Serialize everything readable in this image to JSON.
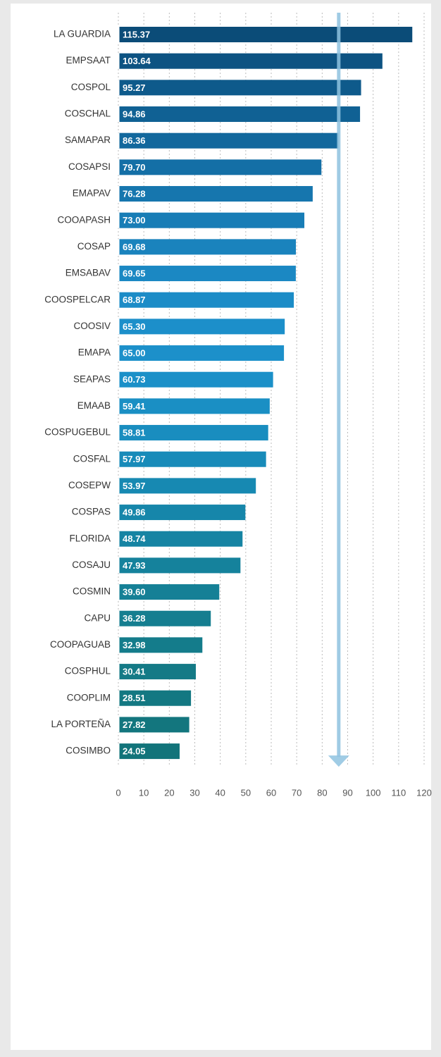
{
  "chart_data": {
    "type": "hbar",
    "categories": [
      "LA GUARDIA",
      "EMPSAAT",
      "COSPOL",
      "COSCHAL",
      "SAMAPAR",
      "COSAPSI",
      "EMAPAV",
      "COOAPASH",
      "COSAP",
      "EMSABAV",
      "COOSPELCAR",
      "COOSIV",
      "EMAPA",
      "SEAPAS",
      "EMAAB",
      "COSPUGEBUL",
      "COSFAL",
      "COSEPW",
      "COSPAS",
      "FLORIDA",
      "COSAJU",
      "COSMIN",
      "CAPU",
      "COOPAGUAB",
      "COSPHUL",
      "COOPLIM",
      "LA PORTEÑA",
      "COSIMBO"
    ],
    "values": [
      115.37,
      103.64,
      95.27,
      94.86,
      86.36,
      79.7,
      76.28,
      73.0,
      69.68,
      69.65,
      68.87,
      65.3,
      65.0,
      60.73,
      59.41,
      58.81,
      57.97,
      53.97,
      49.86,
      48.74,
      47.93,
      39.6,
      36.28,
      32.98,
      30.41,
      28.51,
      27.82,
      24.05
    ],
    "value_labels": [
      "115.37",
      "103.64",
      "95.27",
      "94.86",
      "86.36",
      "79.70",
      "76.28",
      "73.00",
      "69.68",
      "69.65",
      "68.87",
      "65.30",
      "65.00",
      "60.73",
      "59.41",
      "58.81",
      "57.97",
      "53.97",
      "49.86",
      "48.74",
      "47.93",
      "39.60",
      "36.28",
      "32.98",
      "30.41",
      "28.51",
      "27.82",
      "24.05"
    ],
    "colors": [
      "#0b4c78",
      "#0d5382",
      "#0e5a8b",
      "#106194",
      "#12689d",
      "#146fa6",
      "#1676ae",
      "#187db6",
      "#1a83bd",
      "#1b88c3",
      "#1c8cc7",
      "#1c8fca",
      "#1c90ca",
      "#1b90c8",
      "#1a8fc4",
      "#198dbf",
      "#188bb9",
      "#1789b2",
      "#1686aa",
      "#1684a3",
      "#15829c",
      "#158096",
      "#157e90",
      "#147c8b",
      "#147a86",
      "#137882",
      "#13767e",
      "#12747a"
    ],
    "xlim": [
      0,
      120
    ],
    "xticks": [
      0,
      10,
      20,
      30,
      40,
      50,
      60,
      70,
      80,
      90,
      100,
      110,
      120
    ],
    "grid": true,
    "reference_line": 86.5,
    "reference_color": "#8fc3e0"
  }
}
